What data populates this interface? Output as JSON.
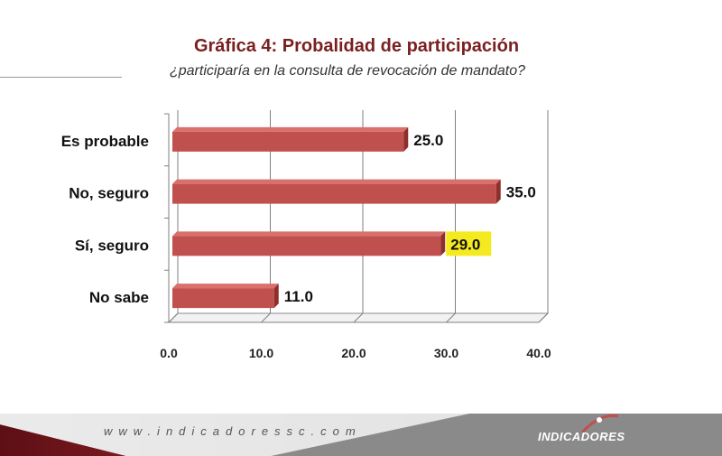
{
  "header": {
    "title": "Gráfica 4: Probalidad de participación",
    "subtitle": "¿participaría en la consulta de revocación de mandato?"
  },
  "chart_data": {
    "type": "bar",
    "orientation": "horizontal",
    "categories": [
      "Es probable",
      "No, seguro",
      "Sí, seguro",
      "No sabe"
    ],
    "values": [
      25.0,
      35.0,
      29.0,
      11.0
    ],
    "data_labels": [
      "25.0",
      "35.0",
      "29.0",
      "11.0"
    ],
    "highlighted_label_index": 2,
    "x_ticks": [
      "0.0",
      "10.0",
      "20.0",
      "30.0",
      "40.0"
    ],
    "xlim": [
      0,
      40
    ],
    "grid": true,
    "title": "Gráfica 4: Probalidad de participación",
    "xlabel": "",
    "ylabel": "",
    "colors": {
      "bar": "#c0504d",
      "bar_top": "#d9706c",
      "bar_side": "#8e2f2c",
      "highlight": "#f5ea1f"
    }
  },
  "footer": {
    "url": "www.indicadoressc.com",
    "logo_text": "INDICADORES",
    "colors": {
      "dark_red": "#5c0f14",
      "gray": "#8a8a8a",
      "light": "#d7d7d7"
    }
  }
}
